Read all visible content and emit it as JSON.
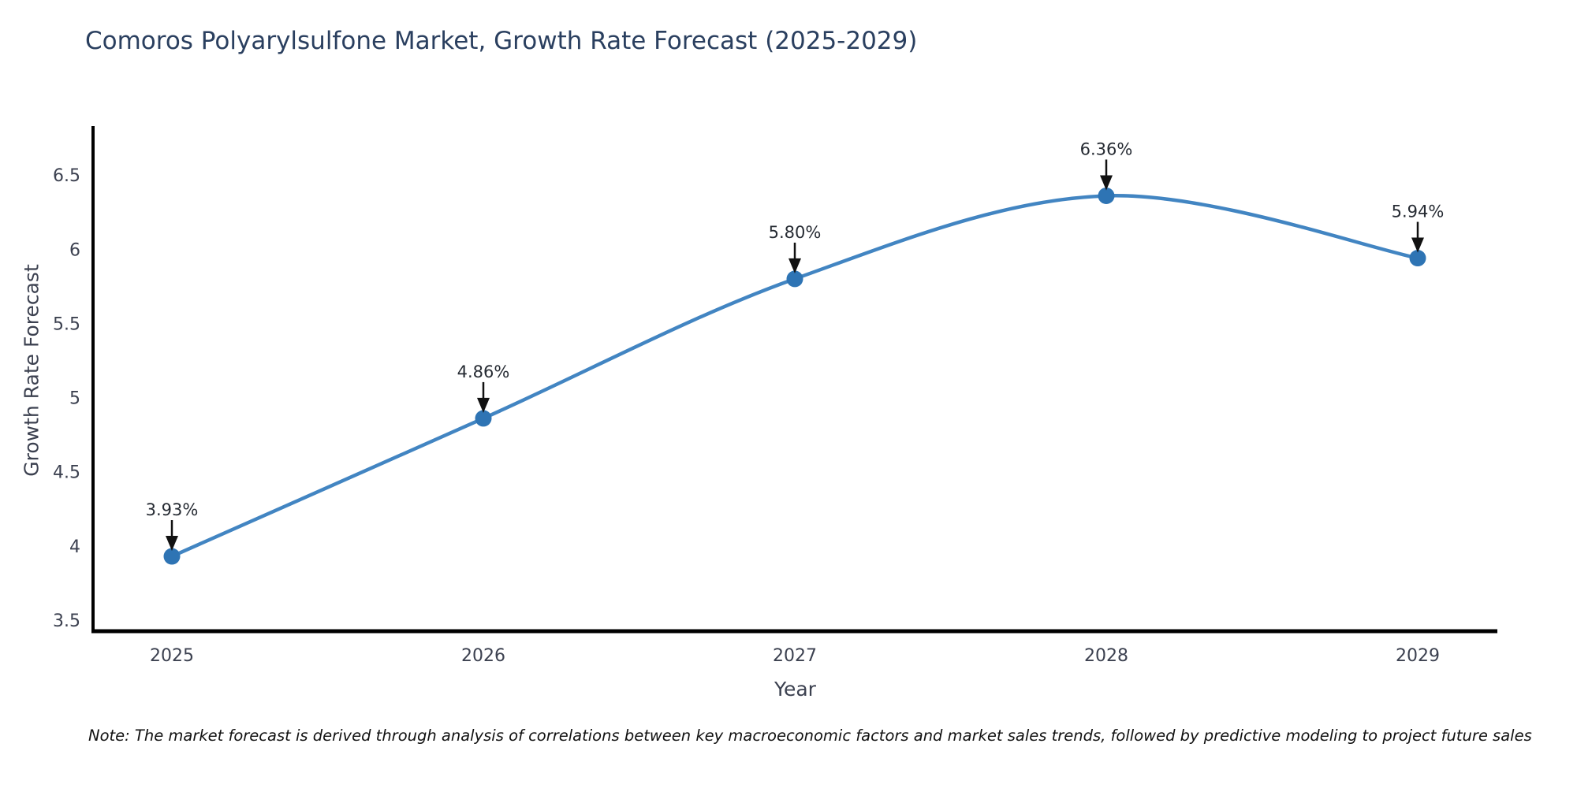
{
  "page": {
    "title": "Comoros Polyarylsulfone Market, Growth Rate Forecast (2025-2029)",
    "note": "Note: The market forecast is derived through analysis of correlations between key macroeconomic factors and market sales trends, followed by predictive modeling to project future sales"
  },
  "chart_data": {
    "type": "line",
    "title": "Comoros Polyarylsulfone Market, Growth Rate Forecast (2025-2029)",
    "xlabel": "Year",
    "ylabel": "Growth Rate Forecast",
    "categories": [
      "2025",
      "2026",
      "2027",
      "2028",
      "2029"
    ],
    "series": [
      {
        "name": "Growth Rate Forecast",
        "values": [
          3.93,
          4.86,
          5.8,
          6.36,
          5.94
        ],
        "point_labels": [
          "3.93%",
          "4.86%",
          "5.80%",
          "6.36%",
          "5.94%"
        ]
      }
    ],
    "yticks": [
      "3.5",
      "4",
      "4.5",
      "5",
      "5.5",
      "6",
      "6.5"
    ],
    "ylim": [
      3.43,
      6.83
    ],
    "line_shape": "spline",
    "grid": false,
    "legend_position": "none",
    "colors": {
      "line": "#4285c2",
      "marker": "#2e74b4",
      "axis_line": "#000000",
      "tick_text": "#3c4150",
      "title_text": "#2a3f5f",
      "annotation_text": "#262b33",
      "arrow": "#111111",
      "background": "#ffffff"
    }
  }
}
